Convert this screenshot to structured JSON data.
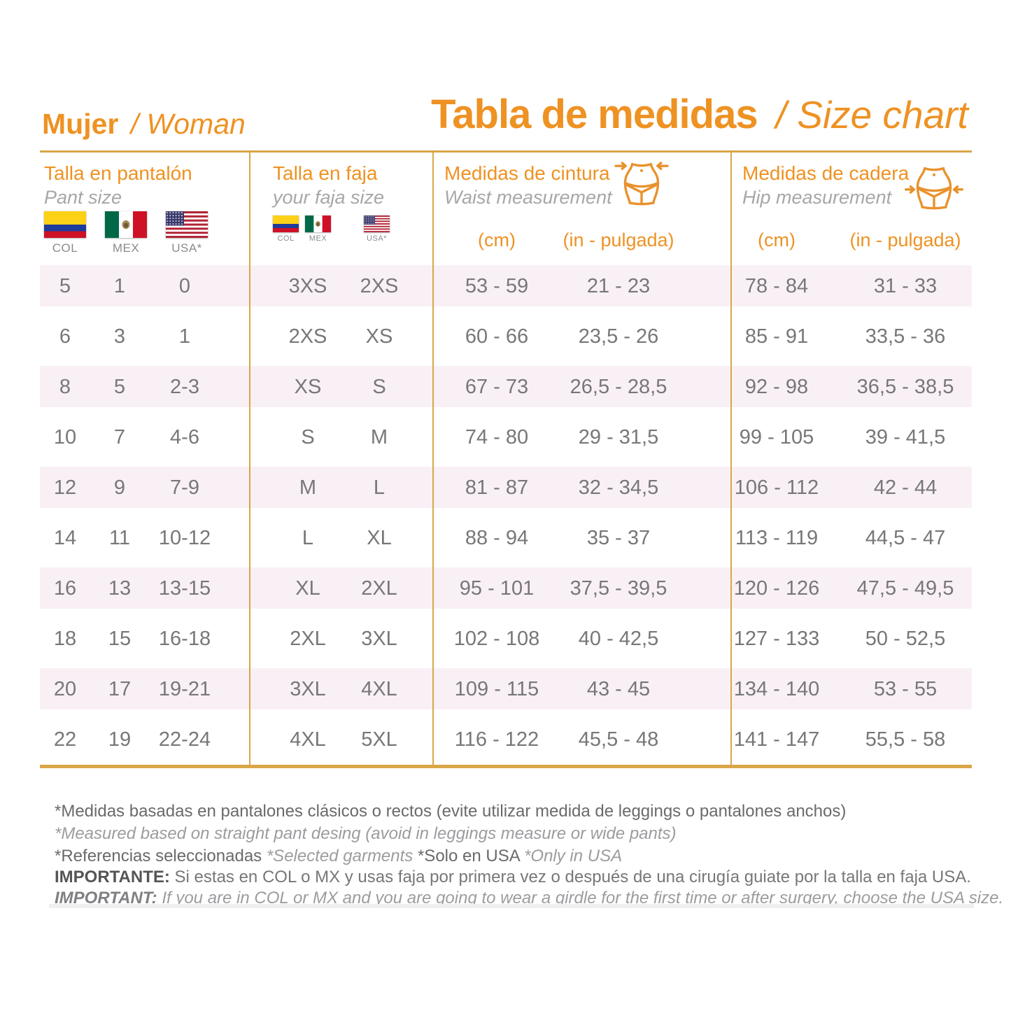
{
  "titles": {
    "left_bold": "Mujer",
    "left_italic": "/ Woman",
    "right_bold": "Tabla de medidas",
    "right_italic": "/ Size chart"
  },
  "columns": {
    "pant": {
      "title": "Talla en pantalón",
      "subtitle": "Pant size",
      "flag_labels": [
        "COL",
        "MEX",
        "USA*"
      ]
    },
    "faja": {
      "title": "Talla en faja",
      "subtitle": "your faja size",
      "flag_labels": [
        "COL",
        "MEX",
        "USA*"
      ]
    },
    "waist": {
      "title": "Medidas de cintura",
      "subtitle": "Waist measurement",
      "unit_cm": "(cm)",
      "unit_in": "(in - pulgada)"
    },
    "hip": {
      "title": "Medidas de cadera",
      "subtitle": "Hip measurement",
      "unit_cm": "(cm)",
      "unit_in": "(in - pulgada)"
    }
  },
  "rows": [
    [
      "5",
      "1",
      "0",
      "3XS",
      "2XS",
      "53 - 59",
      "21 - 23",
      "78 - 84",
      "31 - 33"
    ],
    [
      "6",
      "3",
      "1",
      "2XS",
      "XS",
      "60 - 66",
      "23,5 - 26",
      "85 - 91",
      "33,5 - 36"
    ],
    [
      "8",
      "5",
      "2-3",
      "XS",
      "S",
      "67 - 73",
      "26,5 - 28,5",
      "92 - 98",
      "36,5 - 38,5"
    ],
    [
      "10",
      "7",
      "4-6",
      "S",
      "M",
      "74 - 80",
      "29 - 31,5",
      "99 - 105",
      "39 - 41,5"
    ],
    [
      "12",
      "9",
      "7-9",
      "M",
      "L",
      "81 - 87",
      "32 - 34,5",
      "106 - 112",
      "42 - 44"
    ],
    [
      "14",
      "11",
      "10-12",
      "L",
      "XL",
      "88 - 94",
      "35 - 37",
      "113 - 119",
      "44,5 - 47"
    ],
    [
      "16",
      "13",
      "13-15",
      "XL",
      "2XL",
      "95 - 101",
      "37,5 - 39,5",
      "120 - 126",
      "47,5 - 49,5"
    ],
    [
      "18",
      "15",
      "16-18",
      "2XL",
      "3XL",
      "102 - 108",
      "40 - 42,5",
      "127 - 133",
      "50 - 52,5"
    ],
    [
      "20",
      "17",
      "19-21",
      "3XL",
      "4XL",
      "109 - 115",
      "43 - 45",
      "134 - 140",
      "53 - 55"
    ],
    [
      "22",
      "19",
      "22-24",
      "4XL",
      "5XL",
      "116 - 122",
      "45,5 - 48",
      "141 - 147",
      "55,5 - 58"
    ]
  ],
  "notes": {
    "line1": "*Medidas basadas en pantalones clásicos o rectos (evite utilizar medida de leggings o pantalones anchos)",
    "line2": "*Measured based on straight pant desing (avoid in leggings measure or wide pants)",
    "line3_a": "*Referencias seleccionadas ",
    "line3_b": "*Selected garments ",
    "line3_c": "*Solo en USA ",
    "line3_d": "*Only in USA",
    "line4_label": "IMPORTANTE:",
    "line4_text": " Si estas en COL o MX y usas faja por primera vez o después de una cirugía guiate por la talla en faja USA.",
    "line5_label": "IMPORTANT:",
    "line5_text": " If you are in COL or MX and you are going to wear a girdle for the first time or after surgery, choose the USA size."
  },
  "colors": {
    "accent_orange": "#EE9223",
    "table_line_gold": "#D9A648",
    "row_stripe_pink": "#F9F0F5",
    "text_gray": "#77777A",
    "subtitle_gray": "#A7A7AA"
  }
}
